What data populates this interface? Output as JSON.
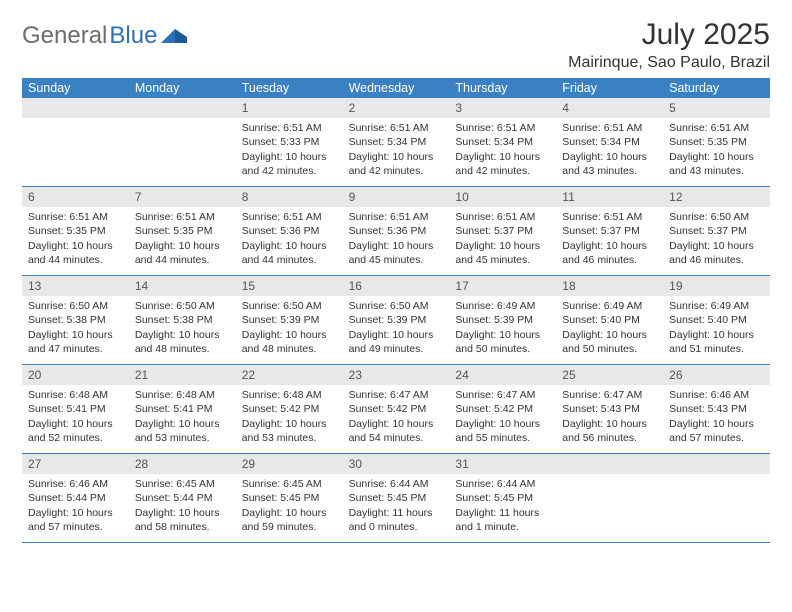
{
  "logo": {
    "text_a": "General",
    "text_b": "Blue"
  },
  "header": {
    "month_title": "July 2025",
    "location": "Mairinque, Sao Paulo, Brazil"
  },
  "colors": {
    "header_bar": "#3a81c4",
    "header_text": "#ffffff",
    "daynum_bg": "#e8e8e8",
    "rule": "#3a81c4",
    "body_text": "#333333",
    "logo_gray": "#6c6c6c",
    "logo_blue": "#2a71b8"
  },
  "weekdays": [
    "Sunday",
    "Monday",
    "Tuesday",
    "Wednesday",
    "Thursday",
    "Friday",
    "Saturday"
  ],
  "weeks": [
    [
      null,
      null,
      {
        "n": "1",
        "sr": "6:51 AM",
        "ss": "5:33 PM",
        "dl": "10 hours and 42 minutes."
      },
      {
        "n": "2",
        "sr": "6:51 AM",
        "ss": "5:34 PM",
        "dl": "10 hours and 42 minutes."
      },
      {
        "n": "3",
        "sr": "6:51 AM",
        "ss": "5:34 PM",
        "dl": "10 hours and 42 minutes."
      },
      {
        "n": "4",
        "sr": "6:51 AM",
        "ss": "5:34 PM",
        "dl": "10 hours and 43 minutes."
      },
      {
        "n": "5",
        "sr": "6:51 AM",
        "ss": "5:35 PM",
        "dl": "10 hours and 43 minutes."
      }
    ],
    [
      {
        "n": "6",
        "sr": "6:51 AM",
        "ss": "5:35 PM",
        "dl": "10 hours and 44 minutes."
      },
      {
        "n": "7",
        "sr": "6:51 AM",
        "ss": "5:35 PM",
        "dl": "10 hours and 44 minutes."
      },
      {
        "n": "8",
        "sr": "6:51 AM",
        "ss": "5:36 PM",
        "dl": "10 hours and 44 minutes."
      },
      {
        "n": "9",
        "sr": "6:51 AM",
        "ss": "5:36 PM",
        "dl": "10 hours and 45 minutes."
      },
      {
        "n": "10",
        "sr": "6:51 AM",
        "ss": "5:37 PM",
        "dl": "10 hours and 45 minutes."
      },
      {
        "n": "11",
        "sr": "6:51 AM",
        "ss": "5:37 PM",
        "dl": "10 hours and 46 minutes."
      },
      {
        "n": "12",
        "sr": "6:50 AM",
        "ss": "5:37 PM",
        "dl": "10 hours and 46 minutes."
      }
    ],
    [
      {
        "n": "13",
        "sr": "6:50 AM",
        "ss": "5:38 PM",
        "dl": "10 hours and 47 minutes."
      },
      {
        "n": "14",
        "sr": "6:50 AM",
        "ss": "5:38 PM",
        "dl": "10 hours and 48 minutes."
      },
      {
        "n": "15",
        "sr": "6:50 AM",
        "ss": "5:39 PM",
        "dl": "10 hours and 48 minutes."
      },
      {
        "n": "16",
        "sr": "6:50 AM",
        "ss": "5:39 PM",
        "dl": "10 hours and 49 minutes."
      },
      {
        "n": "17",
        "sr": "6:49 AM",
        "ss": "5:39 PM",
        "dl": "10 hours and 50 minutes."
      },
      {
        "n": "18",
        "sr": "6:49 AM",
        "ss": "5:40 PM",
        "dl": "10 hours and 50 minutes."
      },
      {
        "n": "19",
        "sr": "6:49 AM",
        "ss": "5:40 PM",
        "dl": "10 hours and 51 minutes."
      }
    ],
    [
      {
        "n": "20",
        "sr": "6:48 AM",
        "ss": "5:41 PM",
        "dl": "10 hours and 52 minutes."
      },
      {
        "n": "21",
        "sr": "6:48 AM",
        "ss": "5:41 PM",
        "dl": "10 hours and 53 minutes."
      },
      {
        "n": "22",
        "sr": "6:48 AM",
        "ss": "5:42 PM",
        "dl": "10 hours and 53 minutes."
      },
      {
        "n": "23",
        "sr": "6:47 AM",
        "ss": "5:42 PM",
        "dl": "10 hours and 54 minutes."
      },
      {
        "n": "24",
        "sr": "6:47 AM",
        "ss": "5:42 PM",
        "dl": "10 hours and 55 minutes."
      },
      {
        "n": "25",
        "sr": "6:47 AM",
        "ss": "5:43 PM",
        "dl": "10 hours and 56 minutes."
      },
      {
        "n": "26",
        "sr": "6:46 AM",
        "ss": "5:43 PM",
        "dl": "10 hours and 57 minutes."
      }
    ],
    [
      {
        "n": "27",
        "sr": "6:46 AM",
        "ss": "5:44 PM",
        "dl": "10 hours and 57 minutes."
      },
      {
        "n": "28",
        "sr": "6:45 AM",
        "ss": "5:44 PM",
        "dl": "10 hours and 58 minutes."
      },
      {
        "n": "29",
        "sr": "6:45 AM",
        "ss": "5:45 PM",
        "dl": "10 hours and 59 minutes."
      },
      {
        "n": "30",
        "sr": "6:44 AM",
        "ss": "5:45 PM",
        "dl": "11 hours and 0 minutes."
      },
      {
        "n": "31",
        "sr": "6:44 AM",
        "ss": "5:45 PM",
        "dl": "11 hours and 1 minute."
      },
      null,
      null
    ]
  ],
  "labels": {
    "sunrise": "Sunrise:",
    "sunset": "Sunset:",
    "daylight": "Daylight:"
  }
}
